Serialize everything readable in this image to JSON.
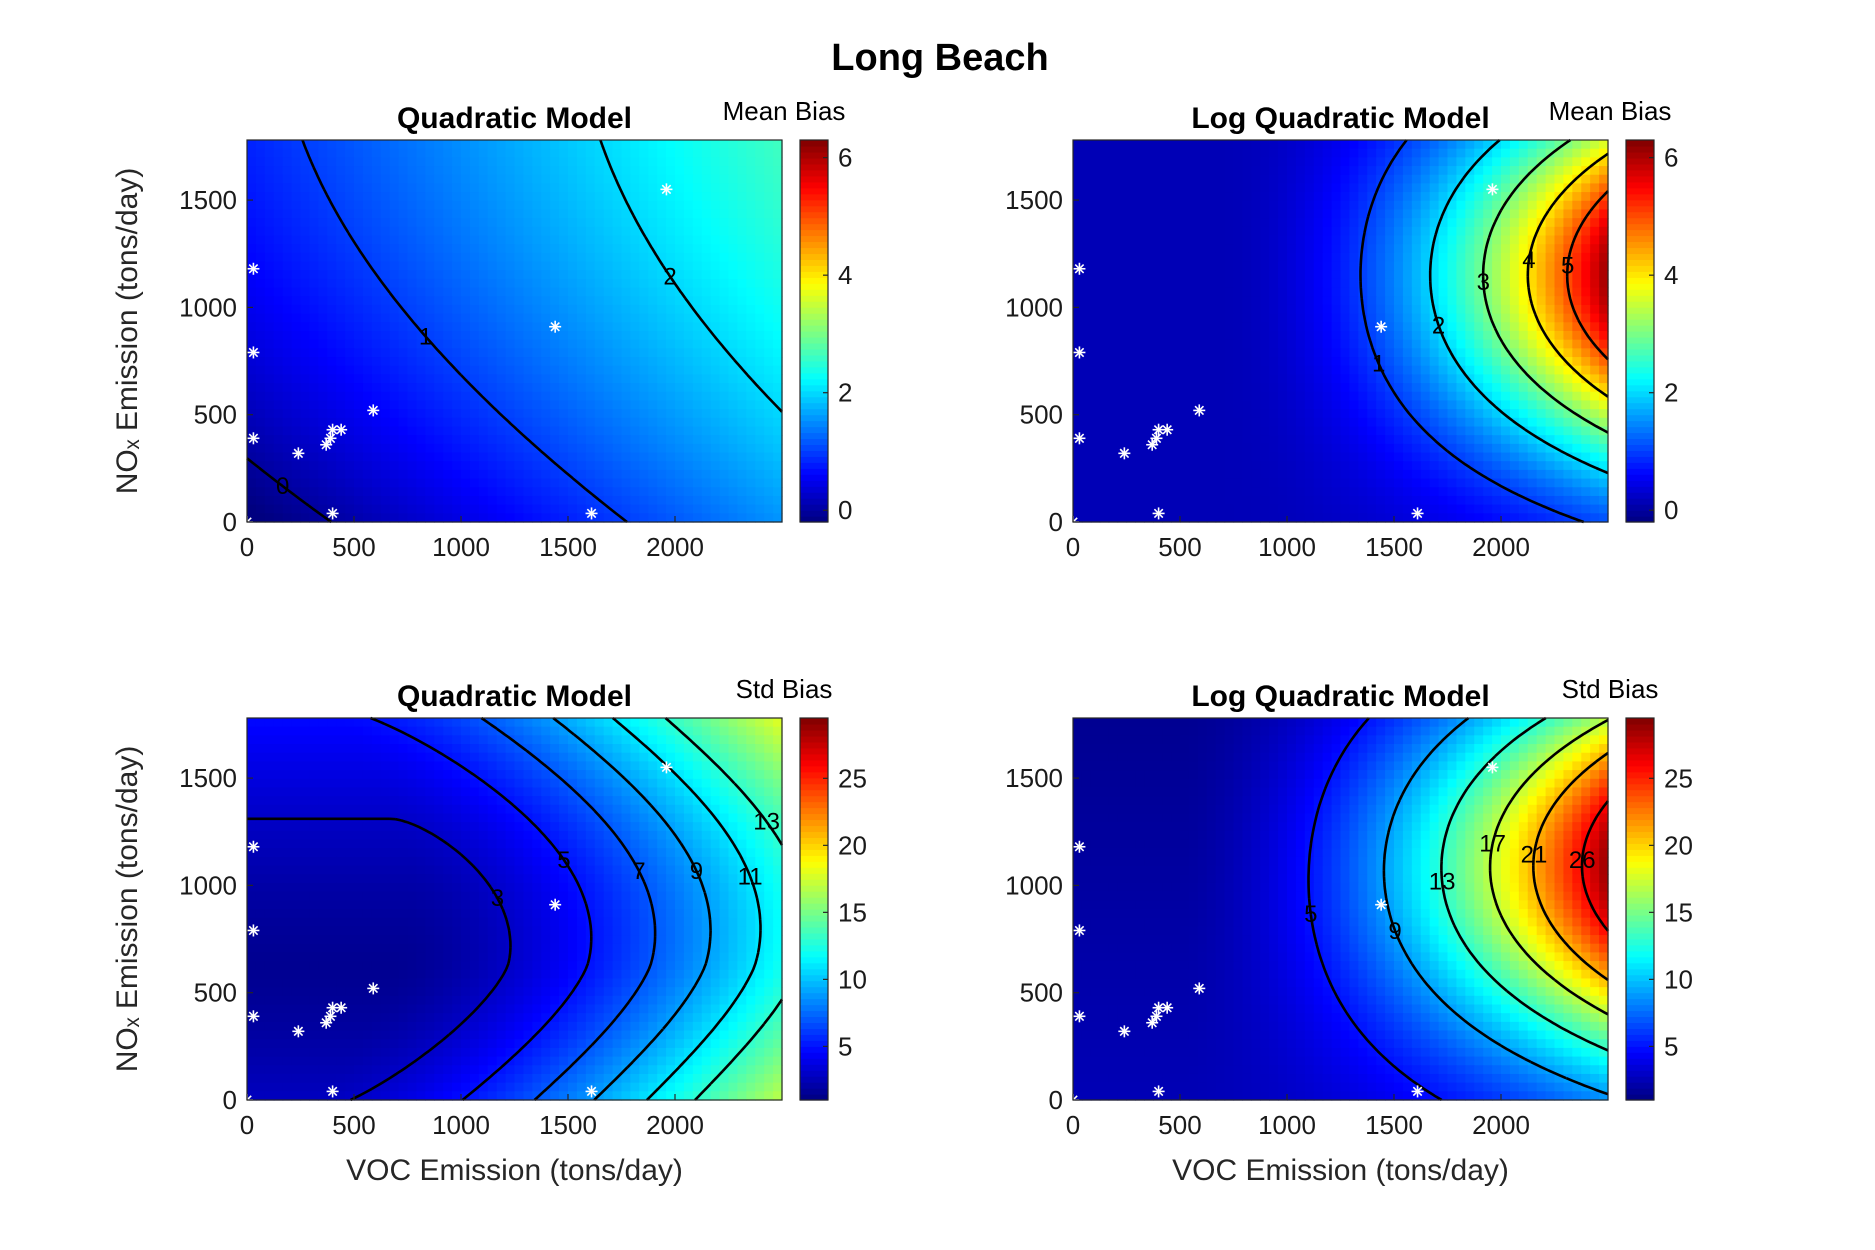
{
  "figure_title": "Long Beach",
  "chart_data": [
    {
      "id": "quad_mean",
      "type": "heatmap",
      "title": "Quadratic Model",
      "colorbar_title": "Mean Bias",
      "colorbar_range": [
        -0.2,
        6.3
      ],
      "colorbar_ticks": [
        0,
        2,
        4,
        6
      ],
      "xlabel": "",
      "ylabel": "NOₓ Emission (tons/day)",
      "xlim": [
        0,
        2500
      ],
      "ylim": [
        0,
        1780
      ],
      "xticks": [
        0,
        500,
        1000,
        1500,
        2000
      ],
      "yticks": [
        0,
        500,
        1000,
        1500
      ],
      "contour_levels": [
        0,
        1,
        2
      ]
    },
    {
      "id": "logquad_mean",
      "type": "heatmap",
      "title": "Log Quadratic Model",
      "colorbar_title": "Mean Bias",
      "colorbar_range": [
        -0.2,
        6.3
      ],
      "colorbar_ticks": [
        0,
        2,
        4,
        6
      ],
      "xlabel": "",
      "ylabel": "",
      "xlim": [
        0,
        2500
      ],
      "ylim": [
        0,
        1780
      ],
      "xticks": [
        0,
        500,
        1000,
        1500,
        2000
      ],
      "yticks": [
        0,
        500,
        1000,
        1500
      ],
      "contour_levels": [
        1,
        2,
        3,
        4,
        5
      ]
    },
    {
      "id": "quad_std",
      "type": "heatmap",
      "title": "Quadratic Model",
      "colorbar_title": "Std Bias",
      "colorbar_range": [
        1,
        29.5
      ],
      "colorbar_ticks": [
        5,
        10,
        15,
        20,
        25
      ],
      "xlabel": "VOC Emission (tons/day)",
      "ylabel": "NOₓ Emission (tons/day)",
      "xlim": [
        0,
        2500
      ],
      "ylim": [
        0,
        1780
      ],
      "xticks": [
        0,
        500,
        1000,
        1500,
        2000
      ],
      "yticks": [
        0,
        500,
        1000,
        1500
      ],
      "contour_levels": [
        3,
        5,
        7,
        9,
        11,
        13
      ]
    },
    {
      "id": "logquad_std",
      "type": "heatmap",
      "title": "Log Quadratic Model",
      "colorbar_title": "Std Bias",
      "colorbar_range": [
        1,
        29.5
      ],
      "colorbar_ticks": [
        5,
        10,
        15,
        20,
        25
      ],
      "xlabel": "VOC Emission (tons/day)",
      "ylabel": "",
      "xlim": [
        0,
        2500
      ],
      "ylim": [
        0,
        1780
      ],
      "xticks": [
        0,
        500,
        1000,
        1500,
        2000
      ],
      "yticks": [
        0,
        500,
        1000,
        1500
      ],
      "contour_levels": [
        5,
        9,
        13,
        17,
        21,
        26
      ]
    }
  ],
  "sample_points": {
    "x": [
      0,
      30,
      30,
      30,
      240,
      370,
      390,
      400,
      400,
      440,
      590,
      1440,
      1610,
      1960
    ],
    "y": [
      0,
      1180,
      790,
      390,
      320,
      360,
      390,
      430,
      40,
      430,
      520,
      910,
      40,
      1550
    ]
  },
  "colors": {
    "colormap": "jet",
    "contour_line": "#000000",
    "sample_marker": "#ffffff"
  }
}
